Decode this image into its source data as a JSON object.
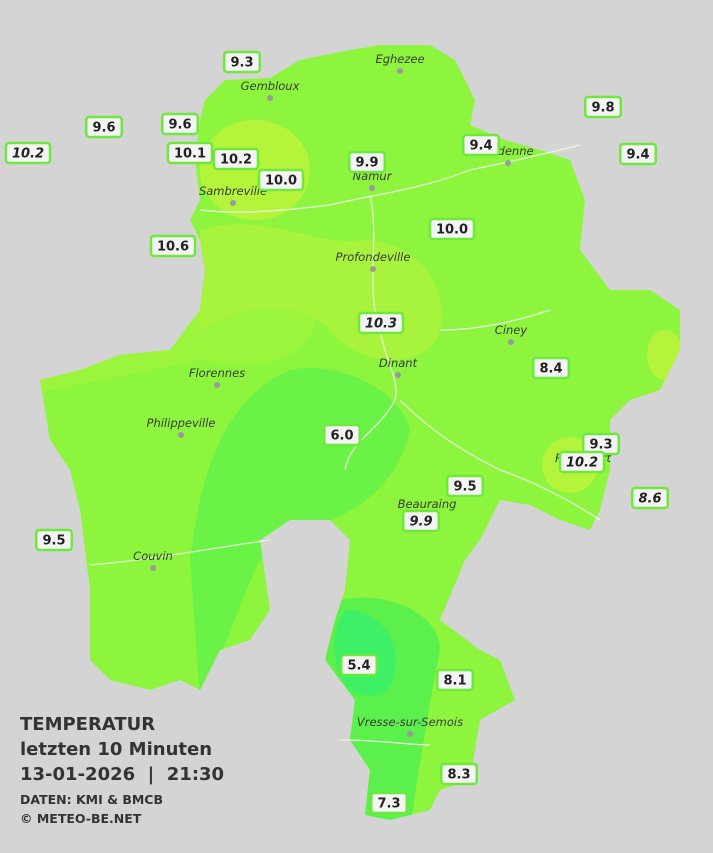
{
  "title": "TEMPERATUR",
  "subtitle": "letzten 10 Minuten",
  "datetime": "13-01-2026  |  21:30",
  "source": "DATEN: KMI & BMCB",
  "copyright": "© METEO-BE.NET",
  "towns": [
    "Eghezee",
    "Gembloux",
    "Andenne",
    "Namur",
    "Sambreville",
    "Profondeville",
    "Ciney",
    "Dinant",
    "Florennes",
    "Philippeville",
    "Rochefort",
    "Beauraing",
    "Couvin",
    "Vresse-sur-Semois"
  ],
  "stations": [
    {
      "label": "9.3",
      "italic": false
    },
    {
      "label": "9.8",
      "italic": false
    },
    {
      "label": "9.6",
      "italic": false
    },
    {
      "label": "9.6",
      "italic": false
    },
    {
      "label": "10.2",
      "italic": true
    },
    {
      "label": "10.1",
      "italic": false
    },
    {
      "label": "10.2",
      "italic": false
    },
    {
      "label": "10.0",
      "italic": false
    },
    {
      "label": "9.9",
      "italic": false
    },
    {
      "label": "9.4",
      "italic": false
    },
    {
      "label": "9.4",
      "italic": false
    },
    {
      "label": "10.6",
      "italic": false
    },
    {
      "label": "10.0",
      "italic": false
    },
    {
      "label": "10.3",
      "italic": true
    },
    {
      "label": "8.4",
      "italic": false
    },
    {
      "label": "6.0",
      "italic": false
    },
    {
      "label": "9.3",
      "italic": false
    },
    {
      "label": "10.2",
      "italic": true
    },
    {
      "label": "8.6",
      "italic": true
    },
    {
      "label": "9.5",
      "italic": false
    },
    {
      "label": "9.9",
      "italic": true
    },
    {
      "label": "9.5",
      "italic": false
    },
    {
      "label": "5.4",
      "italic": false
    },
    {
      "label": "8.1",
      "italic": false
    },
    {
      "label": "8.3",
      "italic": false
    },
    {
      "label": "7.3",
      "italic": false
    }
  ]
}
